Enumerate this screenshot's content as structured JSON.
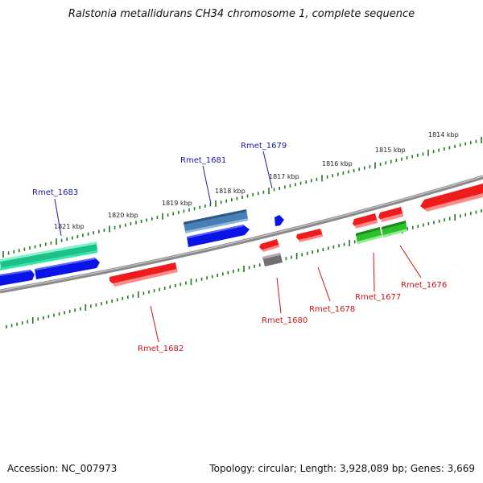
{
  "title": "Ralstonia metallidurans CH34 chromosome 1, complete sequence",
  "footer": {
    "accession": "Accession: NC_007973",
    "topology": "Topology: circular; Length: 3,928,089 bp; Genes: 3,669"
  },
  "colors": {
    "backbone": "#808080",
    "ticks": "#1e7a1e",
    "label_top": "#1a1aa6",
    "label_bottom": "#c81414",
    "blue": "#0a14e6",
    "red": "#ee1c1c",
    "green": "#2cc02c",
    "teal": "#2fe8a6",
    "steelblue": "#4a7fb5",
    "gray": "#707070"
  },
  "scale_labels": [
    "1821 kbp",
    "1820 kbp",
    "1819 kbp",
    "1818 kbp",
    "1817 kbp",
    "1816 kbp",
    "1815 kbp",
    "1814 kbp"
  ],
  "gene_labels": [
    "Rmet_1683",
    "Rmet_1681",
    "Rmet_1679",
    "Rmet_1682",
    "Rmet_1680",
    "Rmet_1678",
    "Rmet_1677",
    "Rmet_1676"
  ]
}
